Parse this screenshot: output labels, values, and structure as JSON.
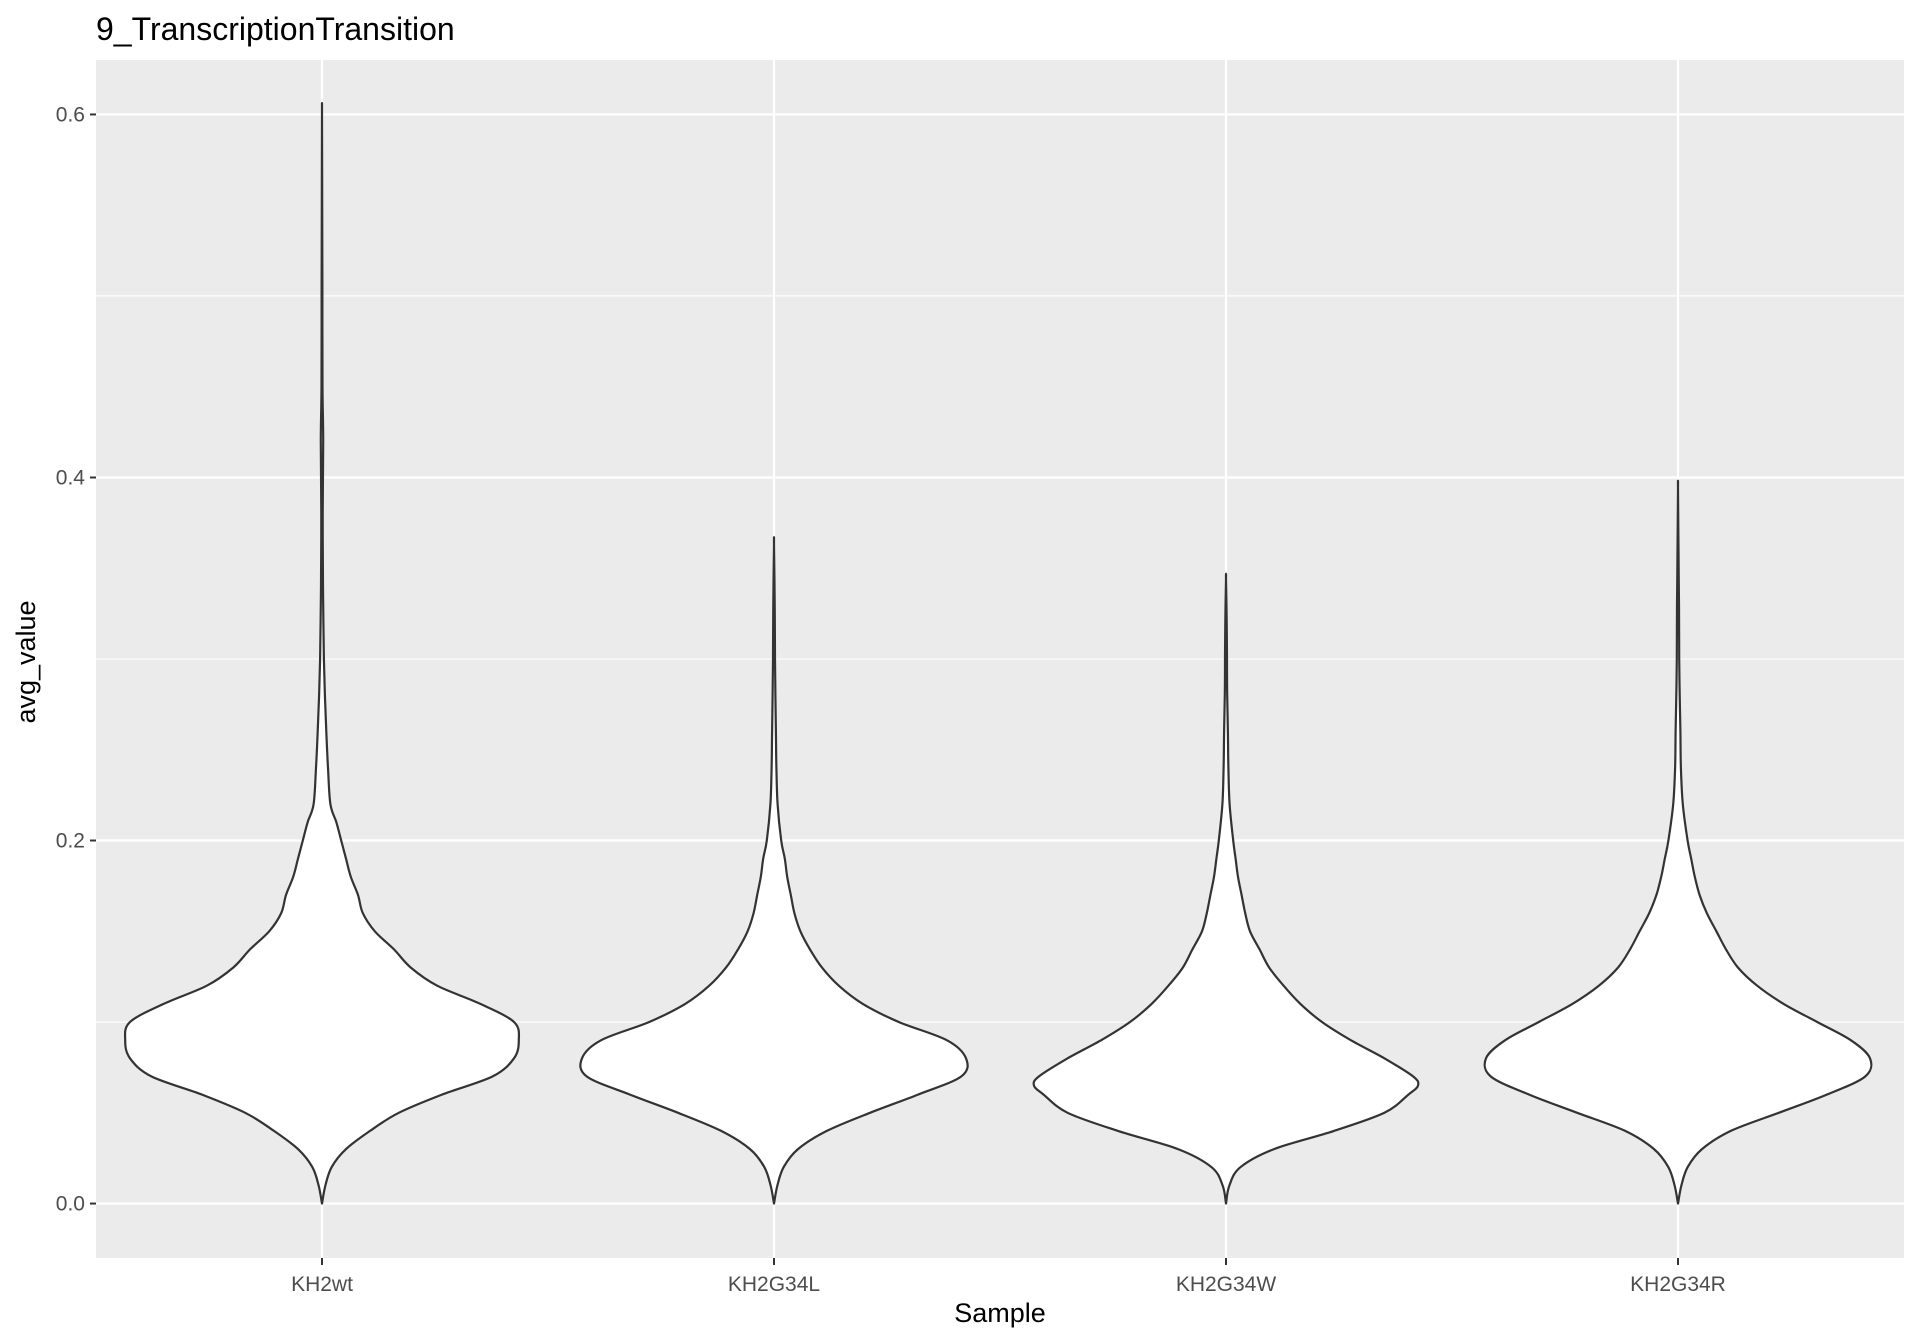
{
  "chart_data": {
    "type": "violin",
    "title": "9_TranscriptionTransition",
    "xlabel": "Sample",
    "ylabel": "avg_value",
    "ylim": [
      -0.03,
      0.63
    ],
    "yticks": [
      0.0,
      0.2,
      0.4,
      0.6
    ],
    "ytick_labels": [
      "0.0",
      "0.2",
      "0.4",
      "0.6"
    ],
    "categories": [
      "KH2wt",
      "KH2G34L",
      "KH2G34W",
      "KH2G34R"
    ],
    "grid": true,
    "legend": "none",
    "colors": {
      "panel": "#ebebeb",
      "grid": "#ffffff",
      "fill": "#ffffff",
      "outline": "#333333",
      "tick_label": "#4d4d4d"
    },
    "violins": [
      {
        "category": "KH2wt",
        "min": 0.0,
        "max": 0.6,
        "profile": [
          [
            0.0,
            0.0
          ],
          [
            0.01,
            0.014
          ],
          [
            0.02,
            0.04
          ],
          [
            0.03,
            0.1
          ],
          [
            0.04,
            0.2
          ],
          [
            0.05,
            0.32
          ],
          [
            0.06,
            0.5
          ],
          [
            0.07,
            0.71
          ],
          [
            0.08,
            0.8
          ],
          [
            0.09,
            0.82
          ],
          [
            0.1,
            0.8
          ],
          [
            0.11,
            0.66
          ],
          [
            0.12,
            0.48
          ],
          [
            0.13,
            0.37
          ],
          [
            0.14,
            0.3
          ],
          [
            0.15,
            0.22
          ],
          [
            0.16,
            0.17
          ],
          [
            0.17,
            0.15
          ],
          [
            0.18,
            0.12
          ],
          [
            0.19,
            0.1
          ],
          [
            0.2,
            0.08
          ],
          [
            0.21,
            0.06
          ],
          [
            0.22,
            0.035
          ],
          [
            0.24,
            0.025
          ],
          [
            0.26,
            0.018
          ],
          [
            0.28,
            0.012
          ],
          [
            0.3,
            0.008
          ],
          [
            0.32,
            0.006
          ],
          [
            0.34,
            0.004
          ],
          [
            0.38,
            0.003
          ],
          [
            0.42,
            0.005
          ],
          [
            0.45,
            0.002
          ],
          [
            0.5,
            0.0015
          ],
          [
            0.55,
            0.001
          ],
          [
            0.6,
            0.0
          ]
        ]
      },
      {
        "category": "KH2G34L",
        "min": 0.0,
        "max": 0.363,
        "profile": [
          [
            0.0,
            0.0
          ],
          [
            0.01,
            0.014
          ],
          [
            0.02,
            0.04
          ],
          [
            0.03,
            0.1
          ],
          [
            0.04,
            0.22
          ],
          [
            0.05,
            0.4
          ],
          [
            0.06,
            0.6
          ],
          [
            0.07,
            0.78
          ],
          [
            0.08,
            0.8
          ],
          [
            0.09,
            0.72
          ],
          [
            0.1,
            0.52
          ],
          [
            0.11,
            0.37
          ],
          [
            0.12,
            0.27
          ],
          [
            0.13,
            0.2
          ],
          [
            0.14,
            0.15
          ],
          [
            0.15,
            0.11
          ],
          [
            0.16,
            0.085
          ],
          [
            0.17,
            0.07
          ],
          [
            0.18,
            0.055
          ],
          [
            0.19,
            0.045
          ],
          [
            0.2,
            0.03
          ],
          [
            0.22,
            0.015
          ],
          [
            0.24,
            0.01
          ],
          [
            0.26,
            0.008
          ],
          [
            0.28,
            0.006
          ],
          [
            0.3,
            0.004
          ],
          [
            0.33,
            0.003
          ],
          [
            0.363,
            0.0
          ]
        ]
      },
      {
        "category": "KH2G34W",
        "min": 0.0,
        "max": 0.344,
        "profile": [
          [
            0.0,
            0.0
          ],
          [
            0.01,
            0.014
          ],
          [
            0.02,
            0.06
          ],
          [
            0.03,
            0.2
          ],
          [
            0.04,
            0.45
          ],
          [
            0.05,
            0.66
          ],
          [
            0.06,
            0.76
          ],
          [
            0.065,
            0.8
          ],
          [
            0.07,
            0.78
          ],
          [
            0.08,
            0.66
          ],
          [
            0.09,
            0.52
          ],
          [
            0.1,
            0.4
          ],
          [
            0.11,
            0.31
          ],
          [
            0.12,
            0.24
          ],
          [
            0.13,
            0.18
          ],
          [
            0.14,
            0.14
          ],
          [
            0.15,
            0.1
          ],
          [
            0.16,
            0.08
          ],
          [
            0.17,
            0.065
          ],
          [
            0.18,
            0.05
          ],
          [
            0.19,
            0.04
          ],
          [
            0.2,
            0.03
          ],
          [
            0.22,
            0.015
          ],
          [
            0.24,
            0.01
          ],
          [
            0.26,
            0.008
          ],
          [
            0.28,
            0.005
          ],
          [
            0.3,
            0.004
          ],
          [
            0.32,
            0.003
          ],
          [
            0.344,
            0.0
          ]
        ]
      },
      {
        "category": "KH2G34R",
        "min": 0.0,
        "max": 0.394,
        "profile": [
          [
            0.0,
            0.0
          ],
          [
            0.01,
            0.014
          ],
          [
            0.02,
            0.04
          ],
          [
            0.03,
            0.1
          ],
          [
            0.04,
            0.22
          ],
          [
            0.05,
            0.42
          ],
          [
            0.06,
            0.62
          ],
          [
            0.07,
            0.78
          ],
          [
            0.08,
            0.8
          ],
          [
            0.09,
            0.72
          ],
          [
            0.1,
            0.58
          ],
          [
            0.11,
            0.44
          ],
          [
            0.12,
            0.33
          ],
          [
            0.13,
            0.25
          ],
          [
            0.14,
            0.2
          ],
          [
            0.15,
            0.16
          ],
          [
            0.16,
            0.12
          ],
          [
            0.17,
            0.09
          ],
          [
            0.18,
            0.07
          ],
          [
            0.19,
            0.055
          ],
          [
            0.2,
            0.04
          ],
          [
            0.22,
            0.02
          ],
          [
            0.24,
            0.012
          ],
          [
            0.26,
            0.01
          ],
          [
            0.28,
            0.007
          ],
          [
            0.3,
            0.005
          ],
          [
            0.33,
            0.004
          ],
          [
            0.36,
            0.002
          ],
          [
            0.394,
            0.0
          ]
        ]
      }
    ]
  }
}
